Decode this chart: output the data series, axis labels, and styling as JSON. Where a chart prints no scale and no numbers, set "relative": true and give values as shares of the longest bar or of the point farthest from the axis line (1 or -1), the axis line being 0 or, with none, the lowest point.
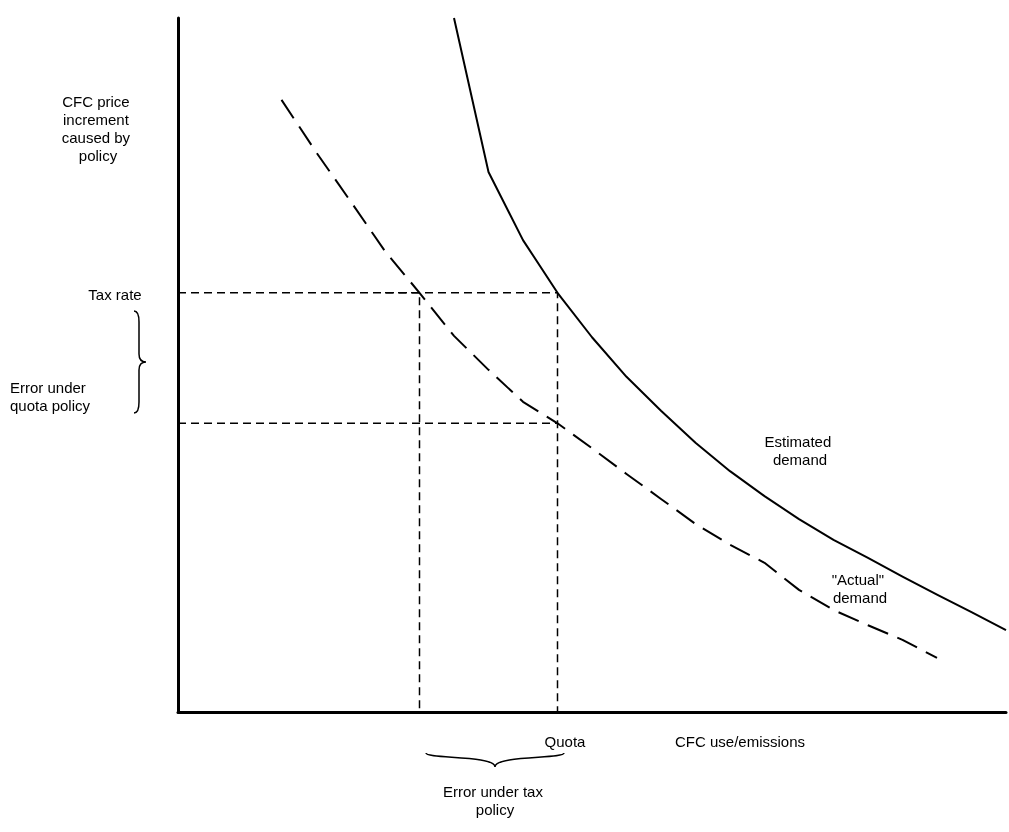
{
  "chart_data": {
    "type": "line",
    "relative": true,
    "xlabel": "CFC use/emissions",
    "ylabel": "CFC price increment caused by policy",
    "categories": [
      null,
      null,
      null,
      null,
      null,
      null,
      null,
      null,
      null,
      null,
      null,
      null,
      null,
      null,
      null,
      null,
      null,
      null,
      null,
      null,
      null,
      null,
      null,
      null,
      null
    ],
    "series": [
      {
        "name": "Estimated demand",
        "color": "#000000",
        "line_style": "solid",
        "values": [
          null,
          null,
          null,
          null,
          null,
          null,
          null,
          null,
          1.0,
          0.778,
          0.68,
          0.604,
          0.54,
          0.483,
          0.434,
          0.388,
          0.347,
          0.311,
          0.278,
          0.248,
          0.222,
          0.195,
          0.169,
          0.144,
          0.118
        ]
      },
      {
        "name": "\"Actual\" demand",
        "color": "#000000",
        "line_style": "dashed",
        "values": [
          null,
          null,
          null,
          0.882,
          0.807,
          0.736,
          0.664,
          0.604,
          0.542,
          0.493,
          0.447,
          0.416,
          0.38,
          0.343,
          0.307,
          0.271,
          0.241,
          0.215,
          0.176,
          0.147,
          0.125,
          0.104,
          0.078,
          null,
          null
        ]
      },
      {
        "type": "step",
        "color": "#000000",
        "line_style": "dashed",
        "values": [
          0.604,
          0.604,
          0.604,
          0.604,
          0.604,
          0.604,
          0.604,
          0.604,
          0.604,
          0.604,
          0.604,
          0,
          null,
          null,
          null,
          null,
          null,
          null,
          null,
          null,
          null,
          null,
          null,
          null,
          null
        ]
      },
      {
        "type": "step",
        "color": "#000000",
        "line_style": "dashed",
        "values": [
          null,
          null,
          null,
          null,
          null,
          null,
          0.604,
          0,
          null,
          null,
          null,
          null,
          null,
          null,
          null,
          null,
          null,
          null,
          null,
          null,
          null,
          null,
          null,
          null,
          null
        ]
      },
      {
        "type": "line",
        "color": "#000000",
        "line_style": "dashed",
        "values": [
          0.416,
          0.416,
          0.416,
          0.416,
          0.416,
          0.416,
          0.416,
          0.416,
          0.416,
          0.416,
          0.416,
          0.416,
          null,
          null,
          null,
          null,
          null,
          null,
          null,
          null,
          null,
          null,
          null,
          null,
          null
        ]
      }
    ],
    "annotations": [
      "Tax rate",
      "Error under quota policy",
      "Quota",
      "Error under tax policy"
    ],
    "legend": false,
    "grid": false,
    "marker": "none"
  }
}
